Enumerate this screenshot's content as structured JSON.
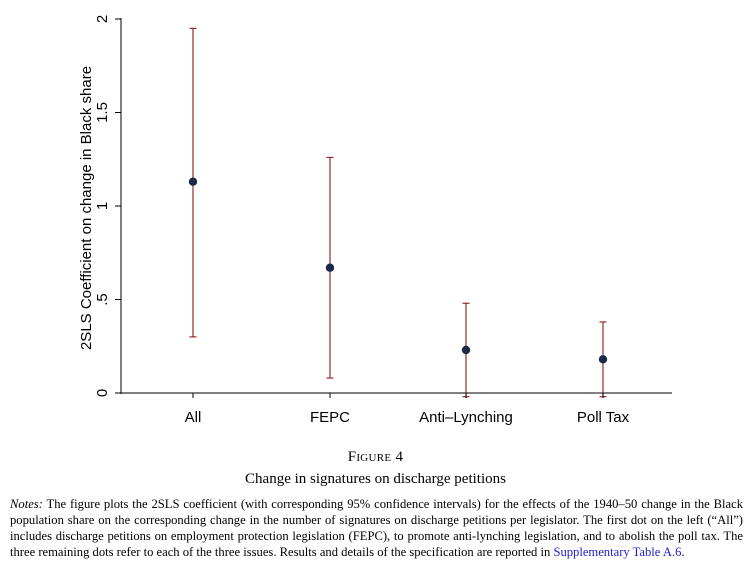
{
  "chart_data": {
    "type": "scatter",
    "subtype": "point-with-confidence-intervals",
    "categories": [
      "All",
      "FEPC",
      "Anti–Lynching",
      "Poll Tax"
    ],
    "estimates": [
      1.13,
      0.67,
      0.23,
      0.18
    ],
    "ci_low": [
      0.3,
      0.08,
      -0.02,
      -0.02
    ],
    "ci_high": [
      1.95,
      1.26,
      0.48,
      0.38
    ],
    "ylabel": "2SLS Coefficient on change in Black share",
    "xlabel": "",
    "ylim": [
      -0.02,
      2.05
    ],
    "yticks": [
      0,
      0.5,
      1,
      1.5,
      2
    ],
    "ytick_labels": [
      "0",
      ".5",
      "1",
      "1.5",
      "2"
    ],
    "zero_line": true,
    "grid": false,
    "colors": {
      "point": "#1a2b4a",
      "ci": "#8b1a1a",
      "axis": "#000000"
    }
  },
  "figure": {
    "number": "Figure 4",
    "caption": "Change in signatures on discharge petitions"
  },
  "notes": {
    "label": "Notes:",
    "text": " The figure plots the 2SLS coefficient (with corresponding 95% confidence intervals) for the effects of the 1940–50 change in the Black population share on the corresponding change in the number of signatures on discharge petitions per legislator. The first dot on the left (“All”) includes discharge petitions on employment protection legislation (FEPC), to promote anti-lynching legislation, and to abolish the poll tax. The three remaining dots refer to each of the three issues. Results and details of the specification are reported in ",
    "link": "Supplementary Table A.6",
    "end": "."
  }
}
